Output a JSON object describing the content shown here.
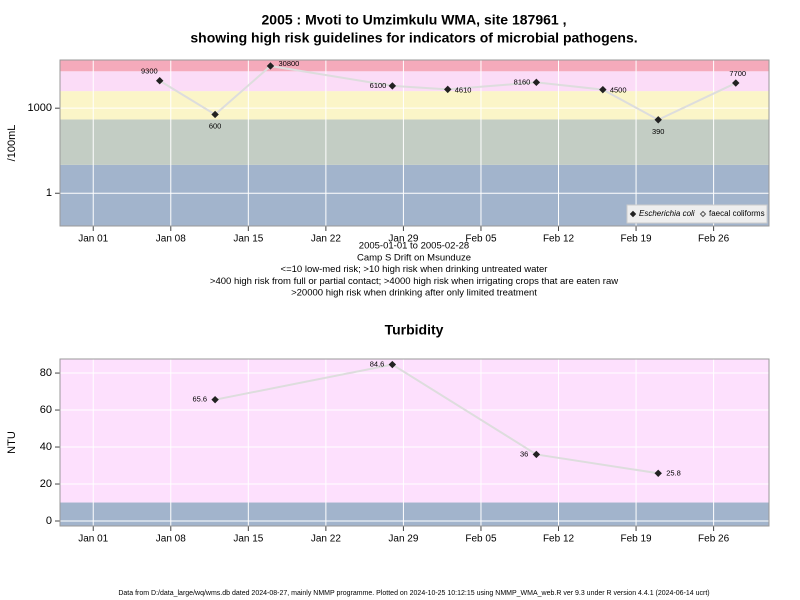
{
  "chart_data": [
    {
      "type": "line",
      "title": [
        "2005 : Mvoti to Umzimkulu WMA, site 187961 ,",
        "showing high risk guidelines for indicators of microbial pathogens."
      ],
      "notes": [
        "2005-01-01 to 2005-02-28",
        "Camp S Drift on Msunduze",
        "<=10 low-med risk; >10 high risk when drinking untreated water",
        ">400 high risk from full or partial contact; >4000 high risk when irrigating crops that are eaten raw",
        ">20000 high risk when drinking after only limited treatment"
      ],
      "y_label": "/100mL",
      "x": [
        "2005-01-07",
        "2005-01-12",
        "2005-01-17",
        "2005-01-28",
        "2005-02-02",
        "2005-02-10",
        "2005-02-16",
        "2005-02-21",
        "2005-02-28"
      ],
      "series": [
        {
          "name": "Escherichia coli",
          "color": "#222222",
          "marker": "filled",
          "values": [
            9300,
            600,
            30800,
            6100,
            4610,
            8160,
            4500,
            390,
            7700
          ]
        },
        {
          "name": "faecal coliforms",
          "color": "#555555",
          "marker": "open",
          "values": [
            null,
            null,
            null,
            null,
            null,
            null,
            null,
            null,
            null
          ]
        }
      ],
      "ylog": true,
      "ylim": [
        0.07,
        50000
      ],
      "yticks": [
        1,
        1000
      ],
      "xlim": [
        "2004-12-29",
        "2005-03-03"
      ],
      "xticks": [
        {
          "value": "2005-01-01",
          "label": "Jan 01"
        },
        {
          "value": "2005-01-08",
          "label": "Jan 08"
        },
        {
          "value": "2005-01-15",
          "label": "Jan 15"
        },
        {
          "value": "2005-01-22",
          "label": "Jan 22"
        },
        {
          "value": "2005-01-29",
          "label": "Jan 29"
        },
        {
          "value": "2005-02-05",
          "label": "Feb 05"
        },
        {
          "value": "2005-02-12",
          "label": "Feb 12"
        },
        {
          "value": "2005-02-19",
          "label": "Feb 19"
        },
        {
          "value": "2005-02-26",
          "label": "Feb 26"
        }
      ],
      "bands": [
        {
          "from": 0.07,
          "to": 10,
          "color": "#a2b4cc"
        },
        {
          "from": 10,
          "to": 400,
          "color": "#c3cdc4"
        },
        {
          "from": 400,
          "to": 4000,
          "color": "#fbf5c8"
        },
        {
          "from": 4000,
          "to": 20000,
          "color": "#fbdcf7"
        },
        {
          "from": 20000,
          "to": 50000,
          "color": "#f5aabb"
        }
      ],
      "line_color": "#dddddd",
      "grid": true,
      "legend": "bottom-right"
    },
    {
      "type": "line",
      "title": [
        "Turbidity"
      ],
      "y_label": "NTU",
      "x": [
        "2005-01-12",
        "2005-01-28",
        "2005-02-10",
        "2005-02-21"
      ],
      "series": [
        {
          "name": "Turbidity",
          "color": "#222222",
          "marker": "filled",
          "values": [
            65.6,
            84.6,
            36,
            25.8
          ]
        }
      ],
      "ylog": false,
      "ylim": [
        -2.7,
        87.6
      ],
      "yticks": [
        0,
        20,
        40,
        60,
        80
      ],
      "xlim": [
        "2004-12-29",
        "2005-03-03"
      ],
      "xticks": [
        {
          "value": "2005-01-01",
          "label": "Jan 01"
        },
        {
          "value": "2005-01-08",
          "label": "Jan 08"
        },
        {
          "value": "2005-01-15",
          "label": "Jan 15"
        },
        {
          "value": "2005-01-22",
          "label": "Jan 22"
        },
        {
          "value": "2005-01-29",
          "label": "Jan 29"
        },
        {
          "value": "2005-02-05",
          "label": "Feb 05"
        },
        {
          "value": "2005-02-12",
          "label": "Feb 12"
        },
        {
          "value": "2005-02-19",
          "label": "Feb 19"
        },
        {
          "value": "2005-02-26",
          "label": "Feb 26"
        }
      ],
      "bands": [
        {
          "from": -2.7,
          "to": 10,
          "color": "#a2b4cc"
        },
        {
          "from": 10,
          "to": 87.6,
          "color": "#fde0fd"
        }
      ],
      "line_color": "#dddddd",
      "grid": true
    }
  ],
  "footer": "Data from D:/data_large/wq/wms.db dated 2024-08-27, mainly NMMP programme. Plotted on 2024-10-25 10:12:15 using NMMP_WMA_web.R ver 9.3 under R version 4.4.1 (2024-06-14 ucrt)"
}
